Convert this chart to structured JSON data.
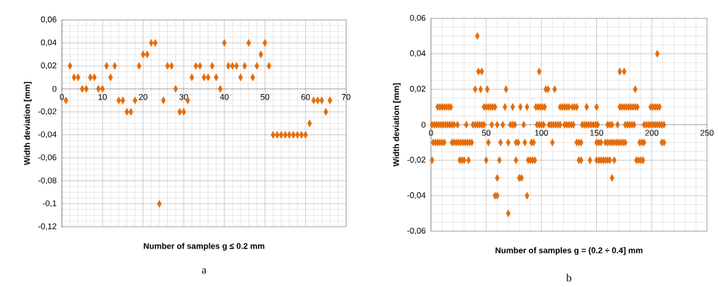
{
  "chart_data": [
    {
      "type": "scatter",
      "xlabel": "Number of samples  g ≤ 0.2 mm",
      "ylabel": "Width deviation [mm]",
      "annotations": [
        "a"
      ],
      "xlim": [
        0,
        70
      ],
      "xticks": [
        0,
        10,
        20,
        30,
        40,
        50,
        60,
        70
      ],
      "ylim": [
        -0.12,
        0.06
      ],
      "yticks": [
        {
          "value": -0.12,
          "label": "-0,12"
        },
        {
          "value": -0.1,
          "label": "-0,1"
        },
        {
          "value": -0.08,
          "label": "-0,08"
        },
        {
          "value": -0.06,
          "label": "-0,06"
        },
        {
          "value": -0.04,
          "label": "-0,04"
        },
        {
          "value": -0.02,
          "label": "-0,02"
        },
        0,
        {
          "value": 0.02,
          "label": "0,02"
        },
        {
          "value": 0.04,
          "label": "0,04"
        },
        {
          "value": 0.06,
          "label": "0,06"
        }
      ],
      "grid": true,
      "marker": "diamond",
      "series": [
        {
          "color": "#e46c0a",
          "x": [
            1,
            2,
            3,
            4,
            5,
            6,
            7,
            8,
            9,
            10,
            11,
            12,
            13,
            14,
            15,
            16,
            17,
            18,
            19,
            20,
            21,
            22,
            23,
            24,
            25,
            26,
            27,
            28,
            29,
            30,
            31,
            32,
            33,
            34,
            35,
            36,
            37,
            38,
            39,
            40,
            41,
            42,
            43,
            44,
            45,
            46,
            47,
            48,
            49,
            50,
            51,
            52,
            53,
            54,
            55,
            56,
            57,
            58,
            59,
            60,
            61,
            62,
            63,
            64,
            65,
            66
          ],
          "values": [
            -0.01,
            0.02,
            0.01,
            0.01,
            0,
            0,
            0.01,
            0.01,
            0,
            0,
            0.02,
            0.01,
            0.02,
            -0.01,
            -0.01,
            -0.02,
            -0.02,
            -0.01,
            0.02,
            0.03,
            0.03,
            0.04,
            0.04,
            -0.1,
            -0.01,
            0.02,
            0.02,
            0,
            -0.02,
            -0.02,
            -0.01,
            0.01,
            0.02,
            0.02,
            0.01,
            0.01,
            0.02,
            0.01,
            0,
            0.04,
            0.02,
            0.02,
            0.02,
            0.01,
            0.02,
            0.04,
            0.01,
            0.02,
            0.03,
            0.04,
            0.02,
            -0.04,
            -0.04,
            -0.04,
            -0.04,
            -0.04,
            -0.04,
            -0.04,
            -0.04,
            -0.04,
            -0.03,
            -0.01,
            -0.01,
            -0.01,
            -0.02,
            -0.01
          ]
        }
      ]
    },
    {
      "type": "scatter",
      "xlabel": "Number of samples g = (0.2 ÷ 0.4] mm",
      "ylabel": "Width deviation [mm]",
      "annotations": [
        "b"
      ],
      "xlim": [
        0,
        250
      ],
      "xticks": [
        0,
        50,
        100,
        150,
        200,
        250
      ],
      "ylim": [
        -0.06,
        0.06
      ],
      "yticks": [
        {
          "value": -0.06,
          "label": "-0,06"
        },
        {
          "value": -0.04,
          "label": "-0,04"
        },
        {
          "value": -0.02,
          "label": "-0,02"
        },
        0,
        {
          "value": 0.02,
          "label": "0,02"
        },
        {
          "value": 0.04,
          "label": "0,04"
        },
        {
          "value": 0.06,
          "label": "0,06"
        }
      ],
      "grid": true,
      "marker": "diamond",
      "series": [
        {
          "color": "#e46c0a",
          "x": [
            1,
            3,
            5,
            7,
            9,
            11,
            13,
            15,
            17,
            19,
            21,
            24,
            32,
            38,
            40,
            42,
            44,
            46,
            48,
            55,
            60,
            65,
            72,
            74,
            76,
            84,
            96,
            98,
            100,
            102,
            107,
            109,
            111,
            113,
            115,
            117,
            121,
            123,
            125,
            127,
            129,
            137,
            139,
            141,
            143,
            145,
            147,
            149,
            151,
            160,
            162,
            164,
            169,
            176,
            178,
            180,
            182,
            184,
            193,
            195,
            197,
            199,
            201,
            203,
            205,
            207,
            209,
            211
          ],
          "values": [
            0,
            0,
            0,
            0,
            0,
            0,
            0,
            0,
            0,
            0,
            0,
            0,
            0,
            0,
            0,
            0,
            0,
            0,
            0,
            0,
            0,
            0,
            0,
            0,
            0,
            0,
            0,
            0,
            0,
            0,
            0,
            0,
            0,
            0,
            0,
            0,
            0,
            0,
            0,
            0,
            0,
            0,
            0,
            0,
            0,
            0,
            0,
            0,
            0,
            0,
            0,
            0,
            0,
            0,
            0,
            0,
            0,
            0,
            0,
            0,
            0,
            0,
            0,
            0,
            0,
            0,
            0,
            0
          ]
        },
        {
          "color": "#e46c0a",
          "x": [
            6,
            8,
            10,
            12,
            14,
            16,
            18,
            48,
            50,
            52,
            54,
            56,
            58,
            67,
            74,
            81,
            87,
            95,
            97,
            99,
            101,
            103,
            117,
            119,
            121,
            123,
            125,
            128,
            130,
            132,
            141,
            150,
            171,
            173,
            175,
            177,
            179,
            181,
            183,
            185,
            187,
            199,
            201,
            203,
            205,
            207
          ],
          "values": [
            0.01,
            0.01,
            0.01,
            0.01,
            0.01,
            0.01,
            0.01,
            0.01,
            0.01,
            0.01,
            0.01,
            0.01,
            0.01,
            0.01,
            0.01,
            0.01,
            0.01,
            0.01,
            0.01,
            0.01,
            0.01,
            0.01,
            0.01,
            0.01,
            0.01,
            0.01,
            0.01,
            0.01,
            0.01,
            0.01,
            0.01,
            0.01,
            0.01,
            0.01,
            0.01,
            0.01,
            0.01,
            0.01,
            0.01,
            0.01,
            0.01,
            0.01,
            0.01,
            0.01,
            0.01,
            0.01
          ]
        },
        {
          "color": "#e46c0a",
          "x": [
            40,
            45,
            51,
            68,
            104,
            106,
            112,
            185
          ],
          "values": [
            0.02,
            0.02,
            0.02,
            0.02,
            0.02,
            0.02,
            0.02,
            0.02
          ]
        },
        {
          "color": "#e46c0a",
          "x": [
            43,
            46,
            98,
            171,
            175
          ],
          "values": [
            0.03,
            0.03,
            0.03,
            0.03,
            0.03
          ]
        },
        {
          "color": "#e46c0a",
          "x": [
            205
          ],
          "values": [
            0.04
          ]
        },
        {
          "color": "#e46c0a",
          "x": [
            42
          ],
          "values": [
            0.05
          ]
        },
        {
          "color": "#e46c0a",
          "x": [
            2,
            4,
            6,
            8,
            10,
            12,
            19,
            21,
            23,
            25,
            27,
            29,
            31,
            33,
            35,
            37,
            52,
            63,
            70,
            77,
            79,
            85,
            91,
            93,
            110,
            132,
            134,
            136,
            150,
            152,
            154,
            158,
            160,
            162,
            164,
            166,
            168,
            170,
            172,
            174,
            176,
            189,
            191,
            193,
            209,
            211
          ],
          "values": [
            -0.01,
            -0.01,
            -0.01,
            -0.01,
            -0.01,
            -0.01,
            -0.01,
            -0.01,
            -0.01,
            -0.01,
            -0.01,
            -0.01,
            -0.01,
            -0.01,
            -0.01,
            -0.01,
            -0.01,
            -0.01,
            -0.01,
            -0.01,
            -0.01,
            -0.01,
            -0.01,
            -0.01,
            -0.01,
            -0.01,
            -0.01,
            -0.01,
            -0.01,
            -0.01,
            -0.01,
            -0.01,
            -0.01,
            -0.01,
            -0.01,
            -0.01,
            -0.01,
            -0.01,
            -0.01,
            -0.01,
            -0.01,
            -0.01,
            -0.01,
            -0.01,
            -0.01,
            -0.01
          ]
        },
        {
          "color": "#e46c0a",
          "x": [
            1,
            26,
            28,
            30,
            34,
            50,
            62,
            77,
            88,
            90,
            92,
            94,
            134,
            136,
            144,
            150,
            152,
            154,
            156,
            158,
            160,
            162,
            166,
            186,
            188,
            190,
            192
          ],
          "values": [
            -0.02,
            -0.02,
            -0.02,
            -0.02,
            -0.02,
            -0.02,
            -0.02,
            -0.02,
            -0.02,
            -0.02,
            -0.02,
            -0.02,
            -0.02,
            -0.02,
            -0.02,
            -0.02,
            -0.02,
            -0.02,
            -0.02,
            -0.02,
            -0.02,
            -0.02,
            -0.02,
            -0.02,
            -0.02,
            -0.02,
            -0.02
          ]
        },
        {
          "color": "#e46c0a",
          "x": [
            60,
            80,
            82,
            164
          ],
          "values": [
            -0.03,
            -0.03,
            -0.03,
            -0.03
          ]
        },
        {
          "color": "#e46c0a",
          "x": [
            58,
            60,
            87
          ],
          "values": [
            -0.04,
            -0.04,
            -0.04
          ]
        },
        {
          "color": "#e46c0a",
          "x": [
            70
          ],
          "values": [
            -0.05
          ]
        }
      ]
    }
  ]
}
